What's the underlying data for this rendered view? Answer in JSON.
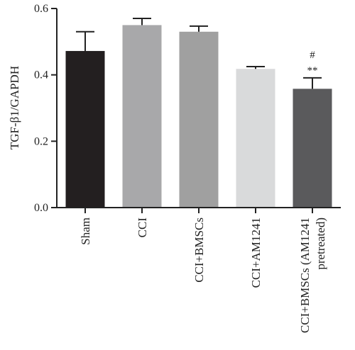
{
  "chart_data": {
    "type": "bar",
    "title": "",
    "xlabel": "",
    "ylabel": "TGF-β1/GAPDH",
    "ylim": [
      0,
      0.6
    ],
    "yticks": [
      "0.0",
      "0.2",
      "0.4",
      "0.6"
    ],
    "grid": false,
    "categories": [
      [
        "Sham"
      ],
      [
        "CCI"
      ],
      [
        "CCI+BMSCs"
      ],
      [
        "CCI+AM1241"
      ],
      [
        "CCI+BMSCs (AM1241",
        "pretreated)"
      ]
    ],
    "values": [
      0.472,
      0.55,
      0.53,
      0.418,
      0.358
    ],
    "errors": [
      0.058,
      0.02,
      0.017,
      0.007,
      0.033
    ],
    "colors": [
      "#231f20",
      "#a8a8aa",
      "#a0a0a0",
      "#d9dadb",
      "#5a5a5c"
    ],
    "annotations": [
      {
        "category_index": 4,
        "lines": [
          "#",
          "**"
        ]
      }
    ]
  }
}
